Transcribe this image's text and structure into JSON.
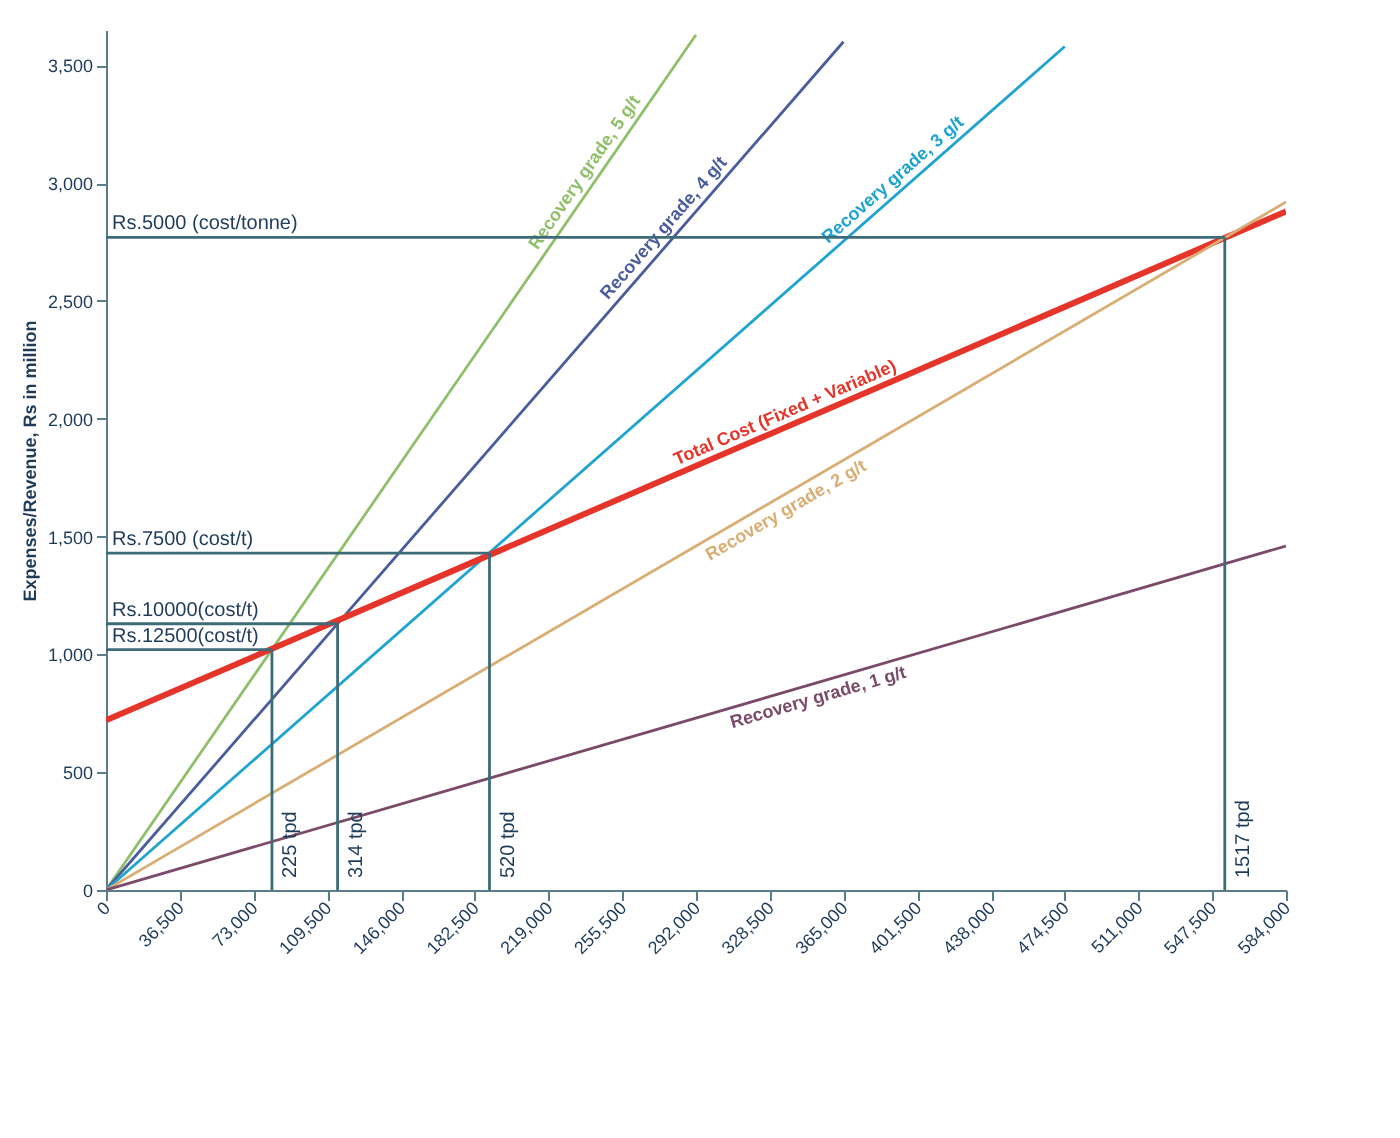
{
  "chart_data": {
    "type": "line",
    "ylabel": "Expenses/Revenue, Rs in million",
    "xlim": [
      0,
      584000
    ],
    "xticks": [
      0,
      {
        "value": 36500,
        "label": "36,500"
      },
      {
        "value": 73000,
        "label": "73,000"
      },
      {
        "value": 109500,
        "label": "109,500"
      },
      {
        "value": 146000,
        "label": "146,000"
      },
      {
        "value": 182500,
        "label": "182,500"
      },
      {
        "value": 219000,
        "label": "219,000"
      },
      {
        "value": 255500,
        "label": "255,500"
      },
      {
        "value": 292000,
        "label": "292,000"
      },
      {
        "value": 328500,
        "label": "328,500"
      },
      {
        "value": 365000,
        "label": "365,000"
      },
      {
        "value": 401500,
        "label": "401,500"
      },
      {
        "value": 438000,
        "label": "438,000"
      },
      {
        "value": 474500,
        "label": "474,500"
      },
      {
        "value": 511000,
        "label": "511,000"
      },
      {
        "value": 547500,
        "label": "547,500"
      },
      {
        "value": 584000,
        "label": "584,000"
      }
    ],
    "ylim": [
      0,
      3650
    ],
    "yticks": [
      0,
      500,
      {
        "value": 1000,
        "label": "1,000"
      },
      {
        "value": 1500,
        "label": "1,500"
      },
      {
        "value": 2000,
        "label": "2,000"
      },
      {
        "value": 2500,
        "label": "2,500"
      },
      {
        "value": 3000,
        "label": "3,000"
      },
      {
        "value": 3500,
        "label": "3,500"
      }
    ],
    "grid": false,
    "legend": false,
    "marker": "none",
    "line_style": "solid",
    "series": [
      {
        "name": "Recovery grade, 5 g/t",
        "color": "#8fbf6a",
        "x": [
          0,
          292000
        ],
        "values": [
          0,
          3630
        ]
      },
      {
        "name": "Recovery grade, 4 g/t",
        "color": "#4a5c9c",
        "x": [
          0,
          365000
        ],
        "values": [
          0,
          3600
        ]
      },
      {
        "name": "Recovery grade, 3 g/t",
        "color": "#1ea4cf",
        "x": [
          0,
          474500
        ],
        "values": [
          0,
          3580
        ]
      },
      {
        "name": "Total Cost (Fixed + Variable)",
        "color": "#e5352b",
        "x": [
          0,
          584000
        ],
        "values": [
          720,
          2880
        ]
      },
      {
        "name": "Recovery grade, 2 g/t",
        "color": "#d9ae74",
        "x": [
          0,
          584000
        ],
        "values": [
          0,
          2920
        ]
      },
      {
        "name": "Recovery grade, 1 g/t",
        "color": "#7a4a68",
        "x": [
          0,
          584000
        ],
        "values": [
          0,
          1460
        ]
      }
    ],
    "ref_lines": [
      {
        "axis": "y",
        "value": 2770,
        "label": "Rs.5000 (cost/tonne)",
        "color": "#3d6b78"
      },
      {
        "axis": "y",
        "value": 1430,
        "label": "Rs.7500 (cost/t)",
        "color": "#3d6b78"
      },
      {
        "axis": "y",
        "value": 1130,
        "label": "Rs.10000(cost/t)",
        "color": "#3d6b78"
      },
      {
        "axis": "y",
        "value": 1020,
        "label": "Rs.12500(cost/t)",
        "color": "#3d6b78"
      },
      {
        "axis": "x",
        "value": 553705,
        "label": "1517 tpd",
        "color": "#3d6b78"
      },
      {
        "axis": "x",
        "value": 189800,
        "label": "520 tpd",
        "color": "#3d6b78"
      },
      {
        "axis": "x",
        "value": 114610,
        "label": "314 tpd",
        "color": "#3d6b78"
      },
      {
        "axis": "x",
        "value": 82125,
        "label": "225 tpd",
        "color": "#3d6b78"
      }
    ]
  }
}
